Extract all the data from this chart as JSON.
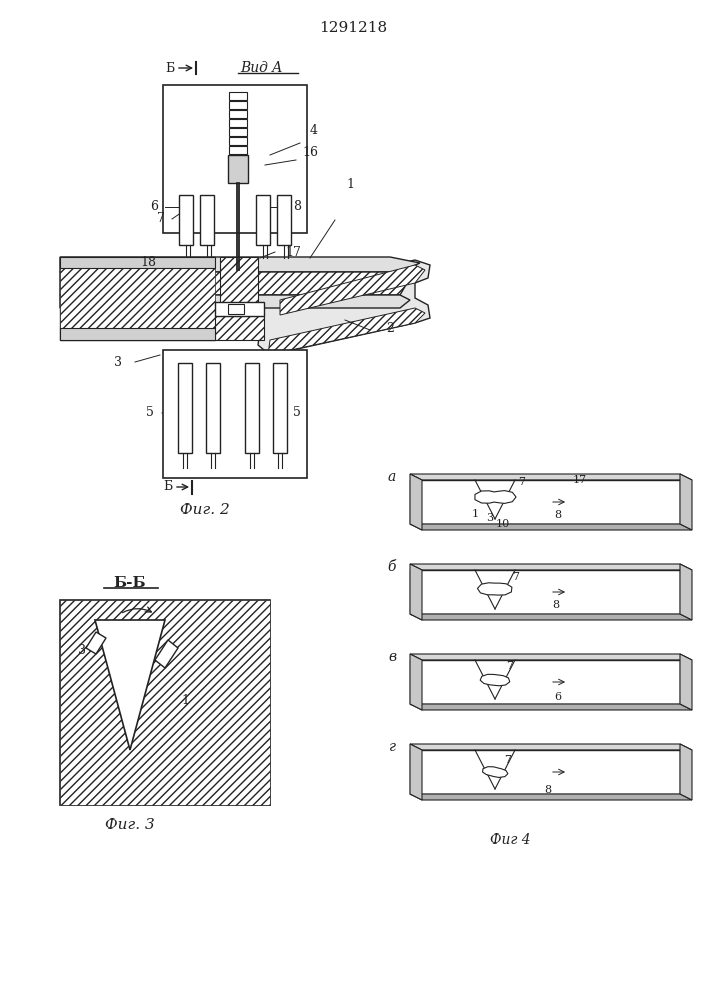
{
  "title": "1291218",
  "bg_color": "#ffffff",
  "line_color": "#222222",
  "fig_width": 7.07,
  "fig_height": 10.0,
  "label_fig2": "Фиг. 2",
  "label_fig3": "Фиг. 3",
  "label_fig4": "Фиг 4",
  "label_vid_a": "Вид A",
  "label_b": "Б",
  "label_bb": "Б-Б"
}
